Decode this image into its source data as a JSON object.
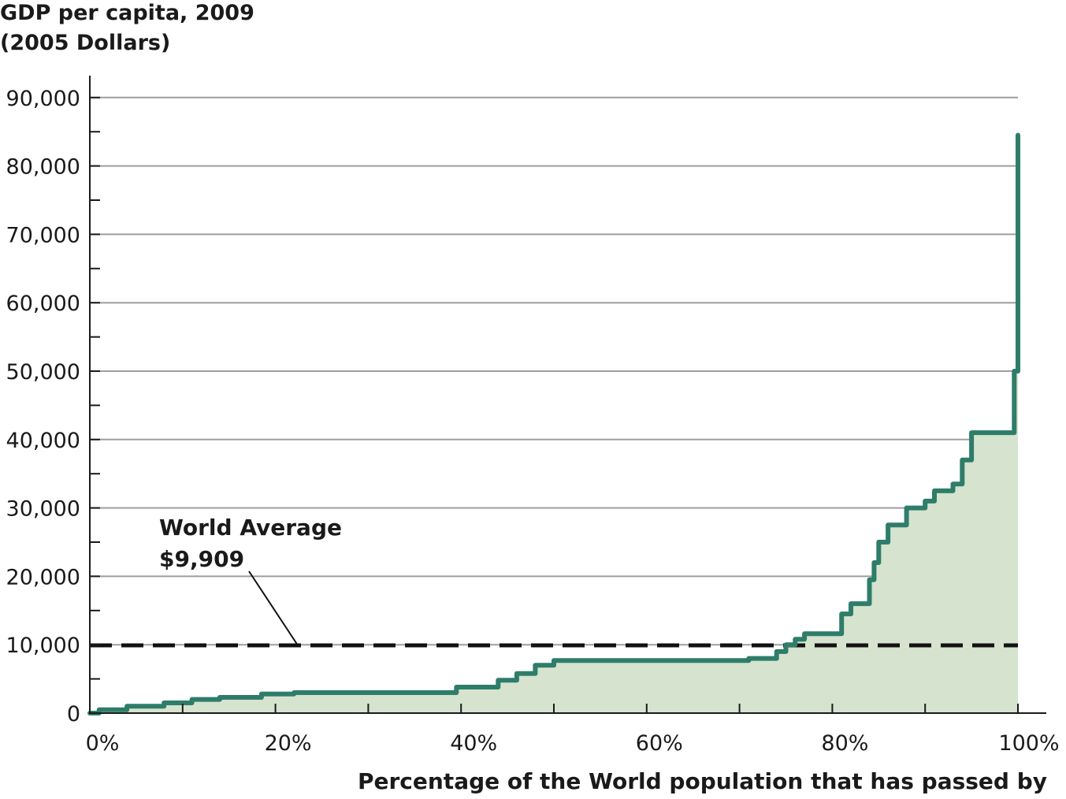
{
  "chart_data": {
    "type": "area",
    "title": "",
    "ylabel_line1": "GDP per capita, 2009",
    "ylabel_line2": "(2005  Dollars)",
    "xlabel": "Percentage of the World population that has passed by",
    "xlim": [
      0,
      100
    ],
    "ylim": [
      0,
      93000
    ],
    "x_ticks": [
      0,
      20,
      40,
      60,
      80,
      100
    ],
    "x_tick_labels": [
      "0%",
      "20%",
      "40%",
      "60%",
      "80%",
      "100%"
    ],
    "y_ticks": [
      0,
      10000,
      20000,
      30000,
      40000,
      50000,
      60000,
      70000,
      80000,
      90000
    ],
    "y_tick_labels": [
      "0",
      "10,000",
      "20,000",
      "30,000",
      "40,000",
      "50,000",
      "60,000",
      "70,000",
      "80,000",
      "90,000"
    ],
    "grid": "horizontal",
    "reference_line": {
      "value": 9909,
      "style": "dashed",
      "label_line1": "World Average",
      "label_line2": "$9,909"
    },
    "line_color": "#2e7d6a",
    "fill_color": "#d5e3cf",
    "series": [
      {
        "x": [
          0,
          1,
          1,
          4,
          4,
          8,
          8,
          11,
          11,
          14,
          14,
          18.5,
          18.5,
          22,
          22,
          39.5,
          39.5,
          44,
          44,
          46,
          46,
          48,
          48,
          50,
          50,
          71,
          71,
          74,
          74,
          75,
          75,
          76,
          76,
          77,
          77,
          81,
          81,
          82,
          82,
          84,
          84,
          84.5,
          84.5,
          85,
          85,
          86,
          86,
          88,
          88,
          90,
          90,
          91,
          91,
          93,
          93,
          94,
          94,
          95,
          95,
          99.6,
          99.6,
          100,
          100
        ],
        "y": [
          0,
          0,
          500,
          500,
          1000,
          1000,
          1500,
          1500,
          2000,
          2000,
          2300,
          2300,
          2800,
          2800,
          3000,
          3000,
          3800,
          3800,
          4800,
          4800,
          5800,
          5800,
          7000,
          7000,
          7700,
          7700,
          8000,
          8000,
          9000,
          9000,
          10000,
          10000,
          10800,
          10800,
          11600,
          11600,
          14500,
          14500,
          16000,
          16000,
          19500,
          19500,
          22000,
          22000,
          25000,
          25000,
          27500,
          27500,
          30000,
          30000,
          31000,
          31000,
          32500,
          32500,
          33500,
          33500,
          37000,
          37000,
          41000,
          41000,
          50000,
          50000,
          84500
        ]
      }
    ]
  }
}
